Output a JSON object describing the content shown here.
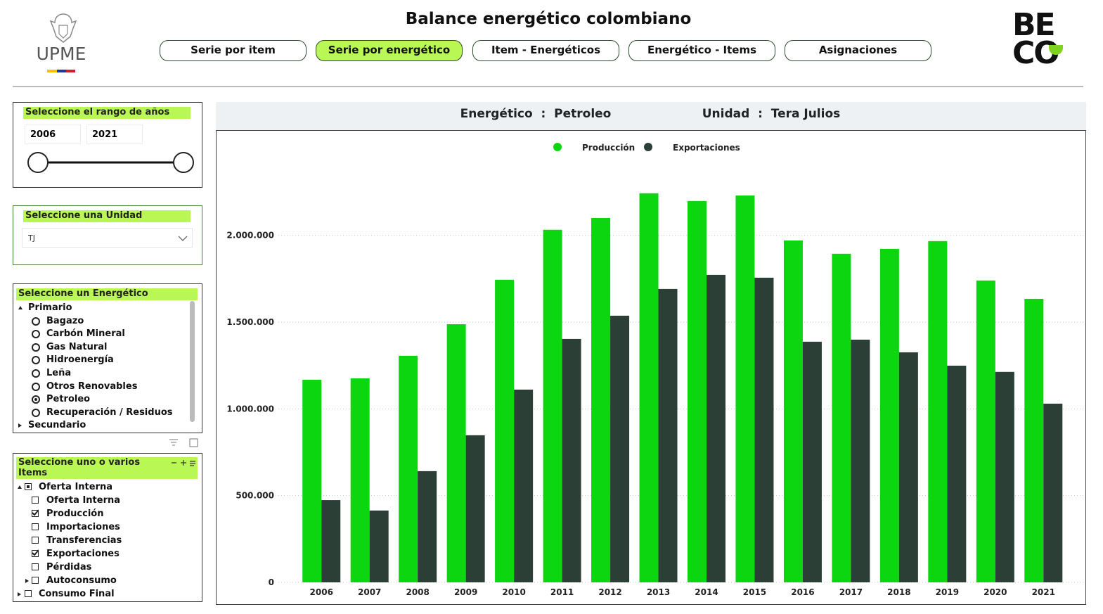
{
  "header": {
    "logo_left": "UPME",
    "title": "Balance energético colombiano",
    "logo_right": [
      "BE",
      "CO"
    ]
  },
  "nav": [
    {
      "label": "Serie por item",
      "active": false
    },
    {
      "label": "Serie por energético",
      "active": true
    },
    {
      "label": "Item - Energéticos",
      "active": false
    },
    {
      "label": "Energético - Items",
      "active": false
    },
    {
      "label": "Asignaciones",
      "active": false
    }
  ],
  "filters": {
    "years": {
      "label": "Seleccione el rango de años",
      "from": "2006",
      "to": "2021"
    },
    "unit": {
      "label": "Seleccione una Unidad",
      "value": "TJ"
    },
    "energetic": {
      "label": "Seleccione un Energético",
      "groups": [
        {
          "name": "Primario",
          "expanded": true,
          "items": [
            {
              "name": "Bagazo",
              "selected": false
            },
            {
              "name": "Carbón Mineral",
              "selected": false
            },
            {
              "name": "Gas Natural",
              "selected": false
            },
            {
              "name": "Hidroenergía",
              "selected": false
            },
            {
              "name": "Leña",
              "selected": false
            },
            {
              "name": "Otros Renovables",
              "selected": false
            },
            {
              "name": "Petroleo",
              "selected": true
            },
            {
              "name": "Recuperación / Residuos",
              "selected": false
            }
          ]
        },
        {
          "name": "Secundario",
          "expanded": false,
          "items": []
        }
      ]
    },
    "items": {
      "label": "Seleccione uno o varios Items",
      "groups": [
        {
          "name": "Oferta Interna",
          "expanded": true,
          "state": "partial",
          "items": [
            {
              "name": "Oferta Interna",
              "state": "unchecked",
              "expandable": false
            },
            {
              "name": "Producción",
              "state": "checked",
              "expandable": false
            },
            {
              "name": "Importaciones",
              "state": "unchecked",
              "expandable": false
            },
            {
              "name": "Transferencias",
              "state": "unchecked",
              "expandable": false
            },
            {
              "name": "Exportaciones",
              "state": "checked",
              "expandable": false
            },
            {
              "name": "Pérdidas",
              "state": "unchecked",
              "expandable": false
            },
            {
              "name": "Autoconsumo",
              "state": "unchecked",
              "expandable": true
            }
          ]
        },
        {
          "name": "Consumo Final",
          "expanded": false,
          "state": "unchecked",
          "items": []
        }
      ]
    }
  },
  "chart_header": {
    "energetic": "Energético  :  Petroleo",
    "unit": "Unidad  :  Tera Julios"
  },
  "chart_data": {
    "type": "bar",
    "categories": [
      "2006",
      "2007",
      "2008",
      "2009",
      "2010",
      "2011",
      "2012",
      "2013",
      "2014",
      "2015",
      "2016",
      "2017",
      "2018",
      "2019",
      "2020",
      "2021"
    ],
    "series": [
      {
        "name": "Producción",
        "color": "#0bd60f",
        "values": [
          1168000,
          1176000,
          1306000,
          1488000,
          1744000,
          2032000,
          2100000,
          2243000,
          2198000,
          2230000,
          1971000,
          1894000,
          1922000,
          1967000,
          1740000,
          1634000
        ]
      },
      {
        "name": "Exportaciones",
        "color": "#2b3f37",
        "values": [
          474000,
          414000,
          641000,
          848000,
          1111000,
          1403000,
          1537000,
          1691000,
          1772000,
          1756000,
          1387000,
          1399000,
          1326000,
          1249000,
          1213000,
          1030000
        ]
      }
    ],
    "ylim": [
      0,
      2400000
    ],
    "yticks": [
      0,
      {
        "value": 500000,
        "label": "500.000"
      },
      {
        "value": 1000000,
        "label": "1.000.000"
      },
      {
        "value": 1500000,
        "label": "1.500.000"
      },
      {
        "value": 2000000,
        "label": "2.000.000"
      }
    ],
    "grid": true
  }
}
